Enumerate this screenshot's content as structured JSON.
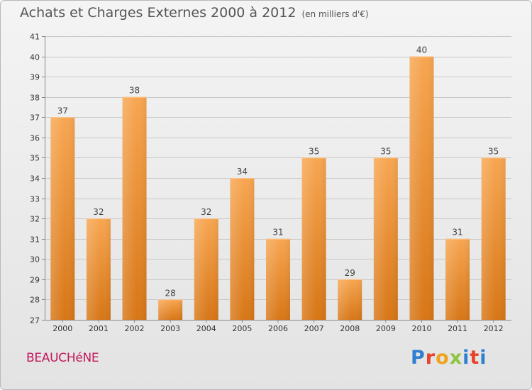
{
  "header": {
    "title": "Achats et Charges Externes 2000 à 2012",
    "unit": "(en milliers d'€)"
  },
  "footer": {
    "commune": "BEAUCHéNE",
    "brand": "Proxiti"
  },
  "colors": {
    "bar_light": "#f7a651",
    "bar_dark": "#d77616",
    "grid": "#c9c9c9",
    "commune": "#c2185b"
  },
  "chart_data": {
    "type": "bar",
    "title": "Achats et Charges Externes 2000 à 2012",
    "subtitle": "(en milliers d'€)",
    "xlabel": "",
    "ylabel": "",
    "categories": [
      "2000",
      "2001",
      "2002",
      "2003",
      "2004",
      "2005",
      "2006",
      "2007",
      "2008",
      "2009",
      "2010",
      "2011",
      "2012"
    ],
    "values": [
      37,
      32,
      38,
      28,
      32,
      34,
      31,
      35,
      29,
      35,
      40,
      31,
      35
    ],
    "ylim": [
      27,
      41
    ],
    "yticks": [
      27,
      28,
      29,
      30,
      31,
      32,
      33,
      34,
      35,
      36,
      37,
      38,
      39,
      40,
      41
    ],
    "grid": true,
    "data_labels": true
  }
}
